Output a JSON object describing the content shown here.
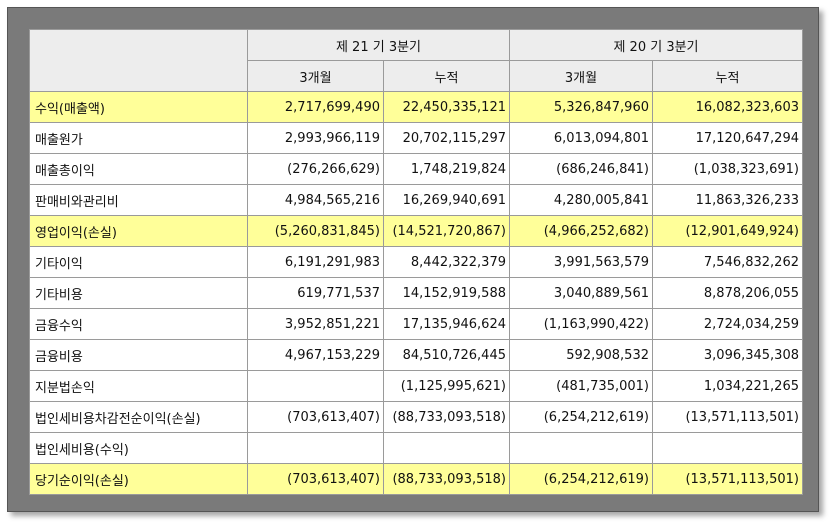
{
  "header": {
    "period_current": "제 21 기 3분기",
    "period_prior": "제 20 기 3분기",
    "sub_3m": "3개월",
    "sub_cum": "누적"
  },
  "rows": [
    {
      "label": "수익(매출액)",
      "highlight": true,
      "values": [
        "2,717,699,490",
        "22,450,335,121",
        "5,326,847,960",
        "16,082,323,603"
      ]
    },
    {
      "label": "매출원가",
      "highlight": false,
      "values": [
        "2,993,966,119",
        "20,702,115,297",
        "6,013,094,801",
        "17,120,647,294"
      ]
    },
    {
      "label": "매출총이익",
      "highlight": false,
      "values": [
        "(276,266,629)",
        "1,748,219,824",
        "(686,246,841)",
        "(1,038,323,691)"
      ]
    },
    {
      "label": "판매비와관리비",
      "highlight": false,
      "values": [
        "4,984,565,216",
        "16,269,940,691",
        "4,280,005,841",
        "11,863,326,233"
      ]
    },
    {
      "label": "영업이익(손실)",
      "highlight": true,
      "values": [
        "(5,260,831,845)",
        "(14,521,720,867)",
        "(4,966,252,682)",
        "(12,901,649,924)"
      ]
    },
    {
      "label": "기타이익",
      "highlight": false,
      "values": [
        "6,191,291,983",
        "8,442,322,379",
        "3,991,563,579",
        "7,546,832,262"
      ]
    },
    {
      "label": "기타비용",
      "highlight": false,
      "values": [
        "619,771,537",
        "14,152,919,588",
        "3,040,889,561",
        "8,878,206,055"
      ]
    },
    {
      "label": "금융수익",
      "highlight": false,
      "values": [
        "3,952,851,221",
        "17,135,946,624",
        "(1,163,990,422)",
        "2,724,034,259"
      ]
    },
    {
      "label": "금융비용",
      "highlight": false,
      "values": [
        "4,967,153,229",
        "84,510,726,445",
        "592,908,532",
        "3,096,345,308"
      ]
    },
    {
      "label": "지분법손익",
      "highlight": false,
      "values": [
        "",
        "(1,125,995,621)",
        "(481,735,001)",
        "1,034,221,265"
      ]
    },
    {
      "label": "법인세비용차감전순이익(손실)",
      "highlight": false,
      "values": [
        "(703,613,407)",
        "(88,733,093,518)",
        "(6,254,212,619)",
        "(13,571,113,501)"
      ]
    },
    {
      "label": "법인세비용(수익)",
      "highlight": false,
      "values": [
        "",
        "",
        "",
        ""
      ]
    },
    {
      "label": "당기순이익(손실)",
      "highlight": true,
      "values": [
        "(703,613,407)",
        "(88,733,093,518)",
        "(6,254,212,619)",
        "(13,571,113,501)"
      ]
    }
  ]
}
